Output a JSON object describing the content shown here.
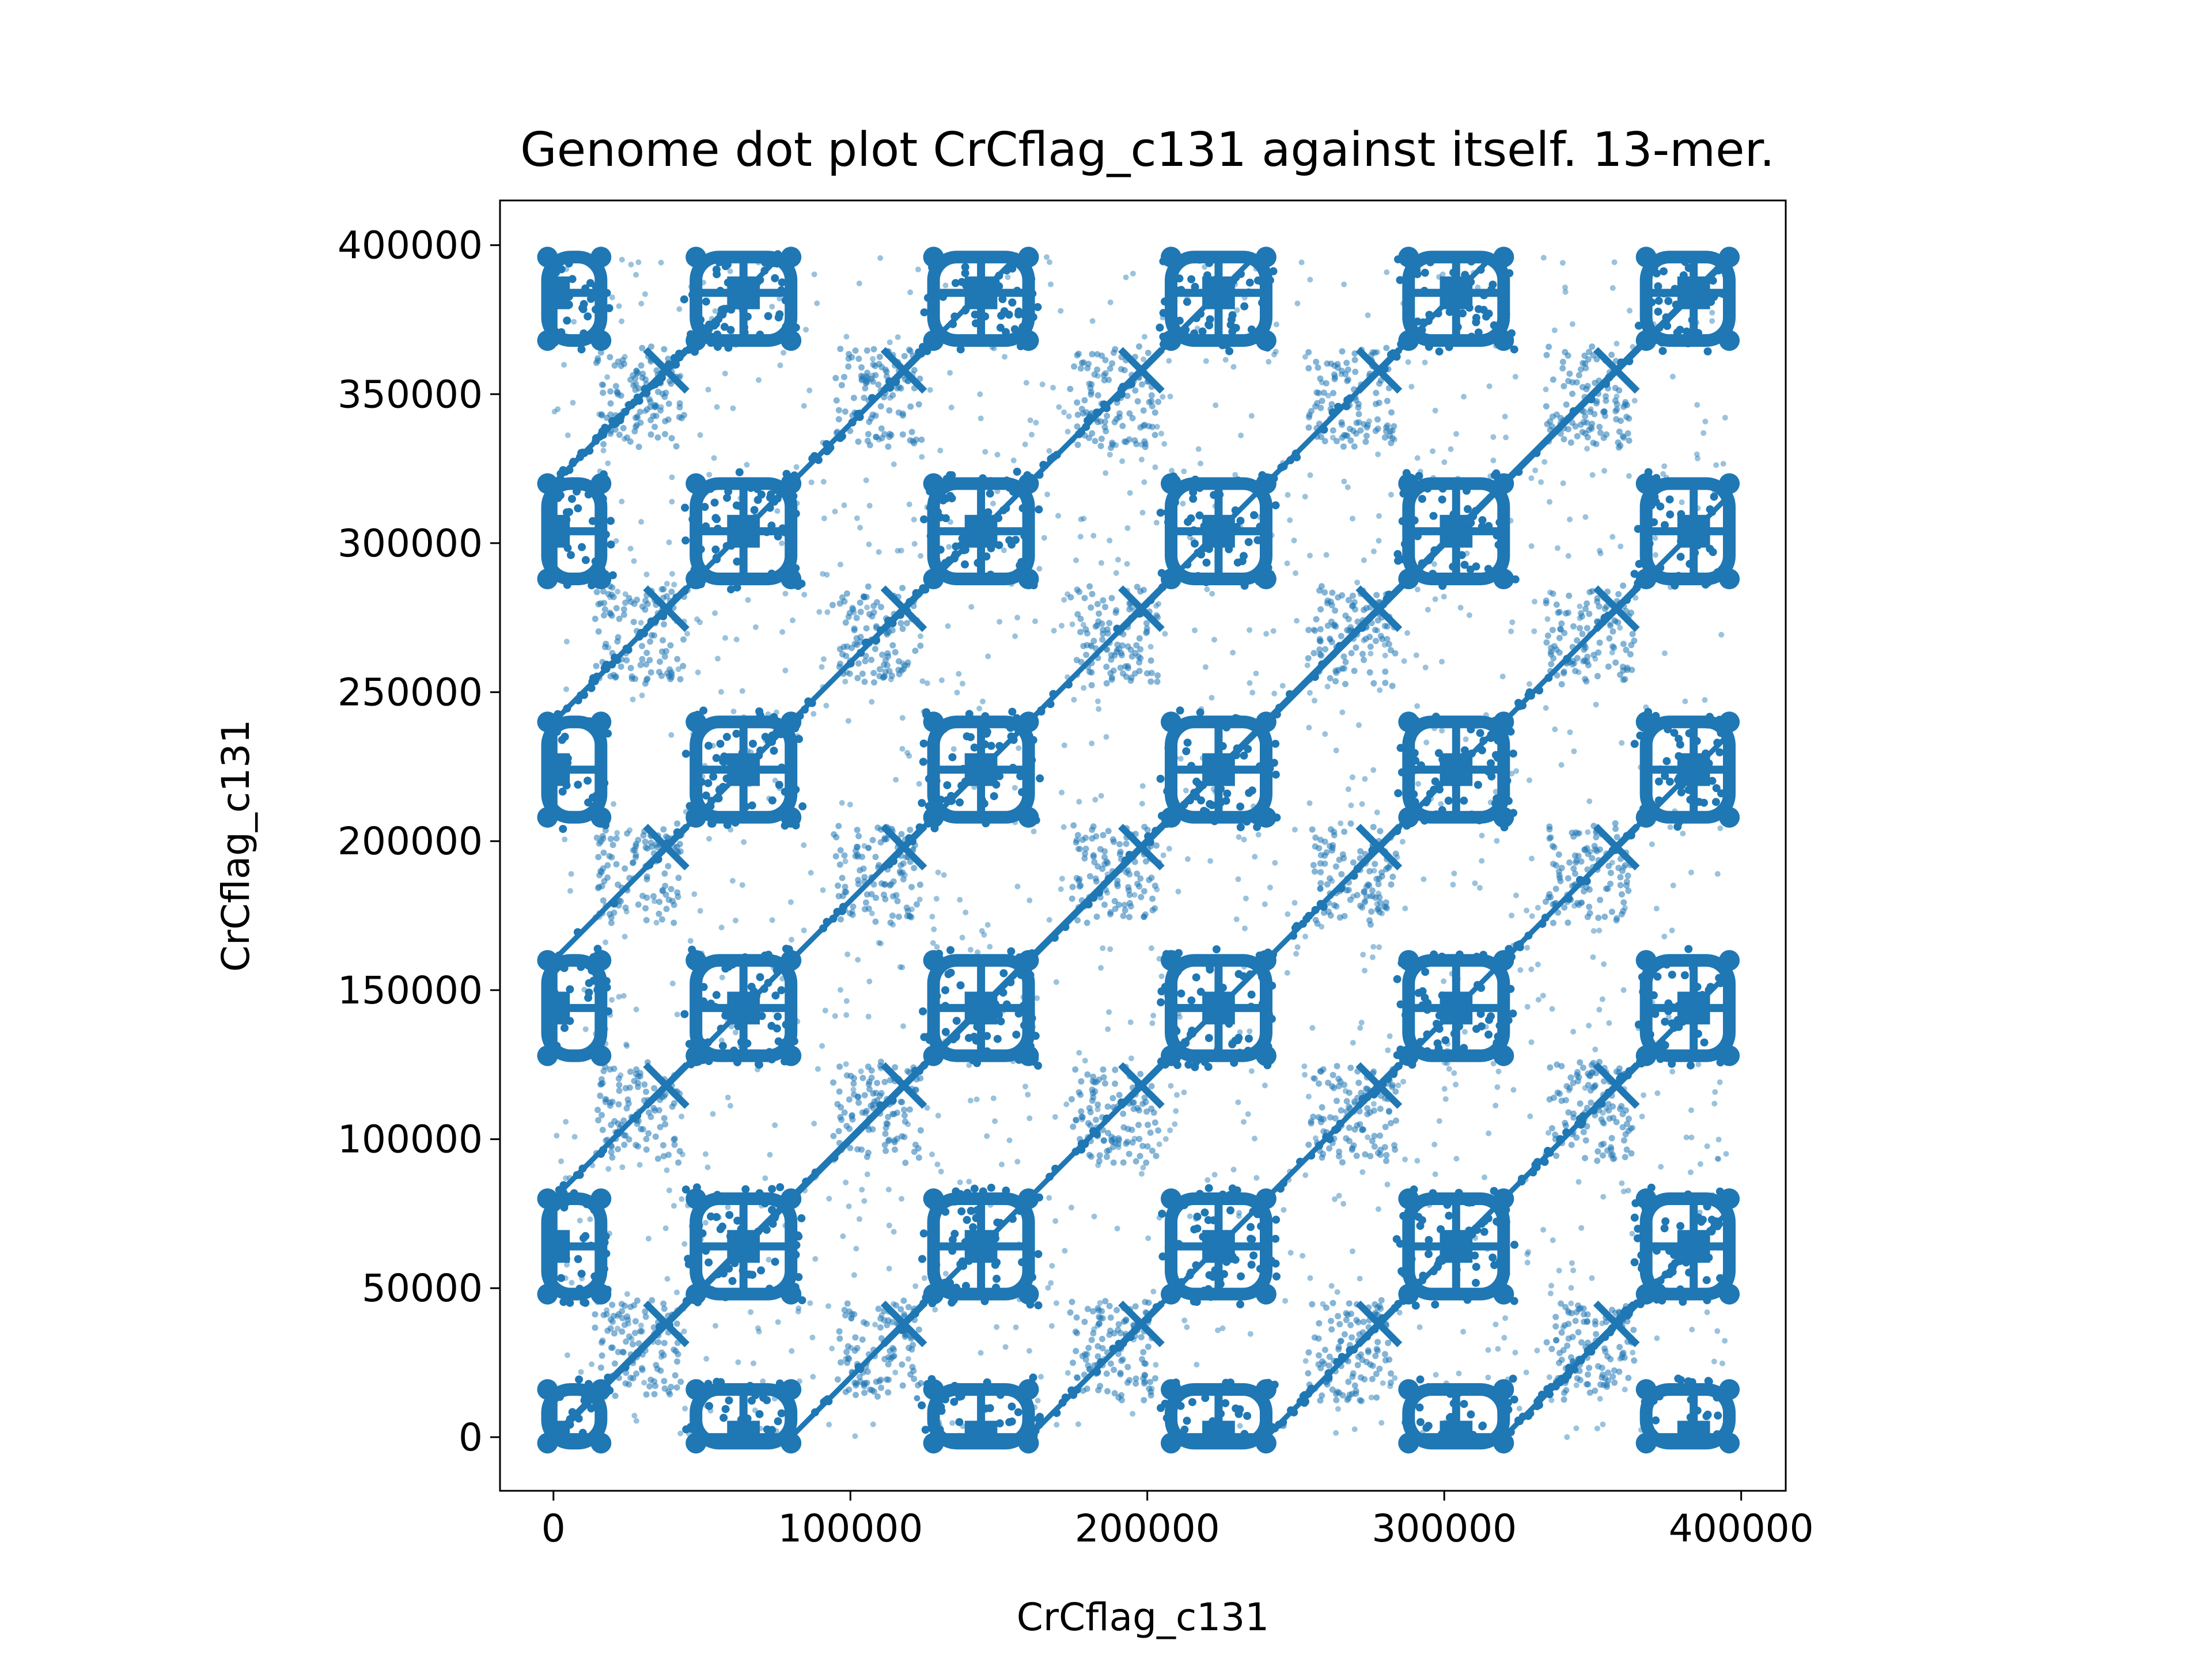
{
  "chart_data": {
    "type": "scatter",
    "title": "Genome dot plot CrCflag_c131 against itself. 13-mer.",
    "xlabel": "CrCflag_c131",
    "ylabel": "CrCflag_c131",
    "xlim": [
      -18000,
      415000
    ],
    "ylim": [
      -18000,
      415000
    ],
    "xticks": [
      0,
      100000,
      200000,
      300000,
      400000
    ],
    "yticks": [
      0,
      50000,
      100000,
      150000,
      200000,
      250000,
      300000,
      350000,
      400000
    ],
    "xtick_labels": [
      "0",
      "100000",
      "200000",
      "300000",
      "400000"
    ],
    "ytick_labels": [
      "0",
      "50000",
      "100000",
      "150000",
      "200000",
      "250000",
      "300000",
      "350000",
      "400000"
    ],
    "grid": false,
    "legend": "none",
    "color": "#1f77b4",
    "pattern": {
      "genome_length": 396000,
      "x_block_period": 80000,
      "y_block_period": 80000,
      "main_diagonal": [
        [
          0,
          0
        ],
        [
          396000,
          396000
        ]
      ],
      "block_centers": [
        [
          0,
          0
        ],
        [
          64000,
          0
        ],
        [
          144000,
          0
        ],
        [
          224000,
          0
        ],
        [
          304000,
          0
        ],
        [
          384000,
          0
        ],
        [
          0,
          64000
        ],
        [
          64000,
          64000
        ],
        [
          144000,
          64000
        ],
        [
          224000,
          64000
        ],
        [
          304000,
          64000
        ],
        [
          384000,
          64000
        ],
        [
          0,
          144000
        ],
        [
          64000,
          144000
        ],
        [
          144000,
          144000
        ],
        [
          224000,
          144000
        ],
        [
          304000,
          144000
        ],
        [
          384000,
          144000
        ],
        [
          0,
          224000
        ],
        [
          64000,
          224000
        ],
        [
          144000,
          224000
        ],
        [
          224000,
          224000
        ],
        [
          304000,
          224000
        ],
        [
          384000,
          224000
        ],
        [
          0,
          304000
        ],
        [
          64000,
          304000
        ],
        [
          144000,
          304000
        ],
        [
          224000,
          304000
        ],
        [
          304000,
          304000
        ],
        [
          384000,
          304000
        ],
        [
          0,
          384000
        ],
        [
          64000,
          384000
        ],
        [
          144000,
          384000
        ],
        [
          224000,
          384000
        ],
        [
          304000,
          384000
        ],
        [
          384000,
          384000
        ]
      ],
      "x_marker_centers": [
        [
          38000,
          38000
        ],
        [
          118000,
          38000
        ],
        [
          198000,
          38000
        ],
        [
          278000,
          38000
        ],
        [
          358000,
          38000
        ],
        [
          38000,
          118000
        ],
        [
          118000,
          118000
        ],
        [
          198000,
          118000
        ],
        [
          278000,
          118000
        ],
        [
          358000,
          118000
        ],
        [
          38000,
          198000
        ],
        [
          118000,
          198000
        ],
        [
          198000,
          198000
        ],
        [
          278000,
          198000
        ],
        [
          358000,
          198000
        ],
        [
          38000,
          278000
        ],
        [
          118000,
          278000
        ],
        [
          198000,
          278000
        ],
        [
          278000,
          278000
        ],
        [
          358000,
          278000
        ],
        [
          38000,
          358000
        ],
        [
          118000,
          358000
        ],
        [
          198000,
          358000
        ],
        [
          278000,
          358000
        ],
        [
          358000,
          358000
        ]
      ]
    }
  }
}
